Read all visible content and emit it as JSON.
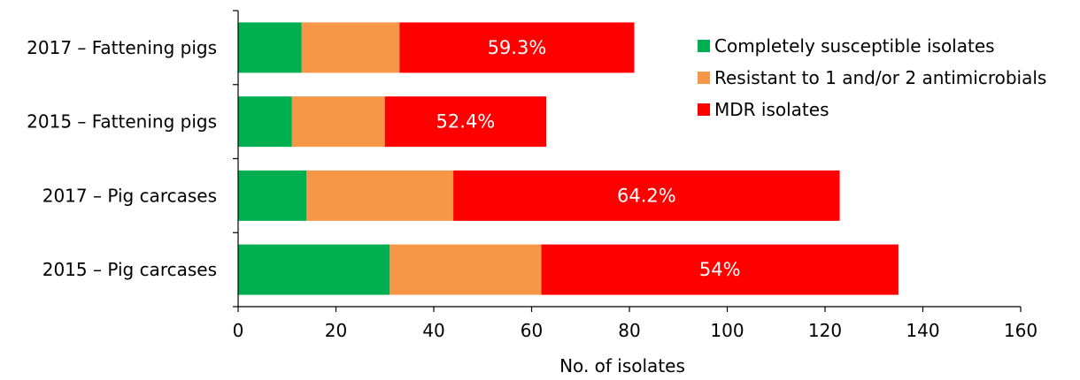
{
  "chart_data": {
    "type": "bar",
    "orientation": "horizontal",
    "stacked": true,
    "title": "",
    "xlabel": "No. of isolates",
    "ylabel": "",
    "xlim": [
      0,
      160
    ],
    "xticks": [
      0,
      20,
      40,
      60,
      80,
      100,
      120,
      140,
      160
    ],
    "grid": false,
    "legend_position": "top-right",
    "categories": [
      "2017 – Fattening pigs",
      "2015 – Fattening pigs",
      "2017 – Pig carcases",
      "2015 – Pig carcases"
    ],
    "series": [
      {
        "name": "Completely susceptible isolates",
        "color": "#00b050",
        "values": [
          13,
          11,
          14,
          31
        ]
      },
      {
        "name": "Resistant to 1 and/or 2 antimicrobials",
        "color": "#f79646",
        "values": [
          20,
          19,
          30,
          31
        ]
      },
      {
        "name": "MDR isolates",
        "color": "#ff0000",
        "values": [
          48,
          33,
          79,
          73
        ]
      }
    ],
    "data_labels": [
      "59.3%",
      "52.4%",
      "64.2%",
      "54%"
    ]
  }
}
